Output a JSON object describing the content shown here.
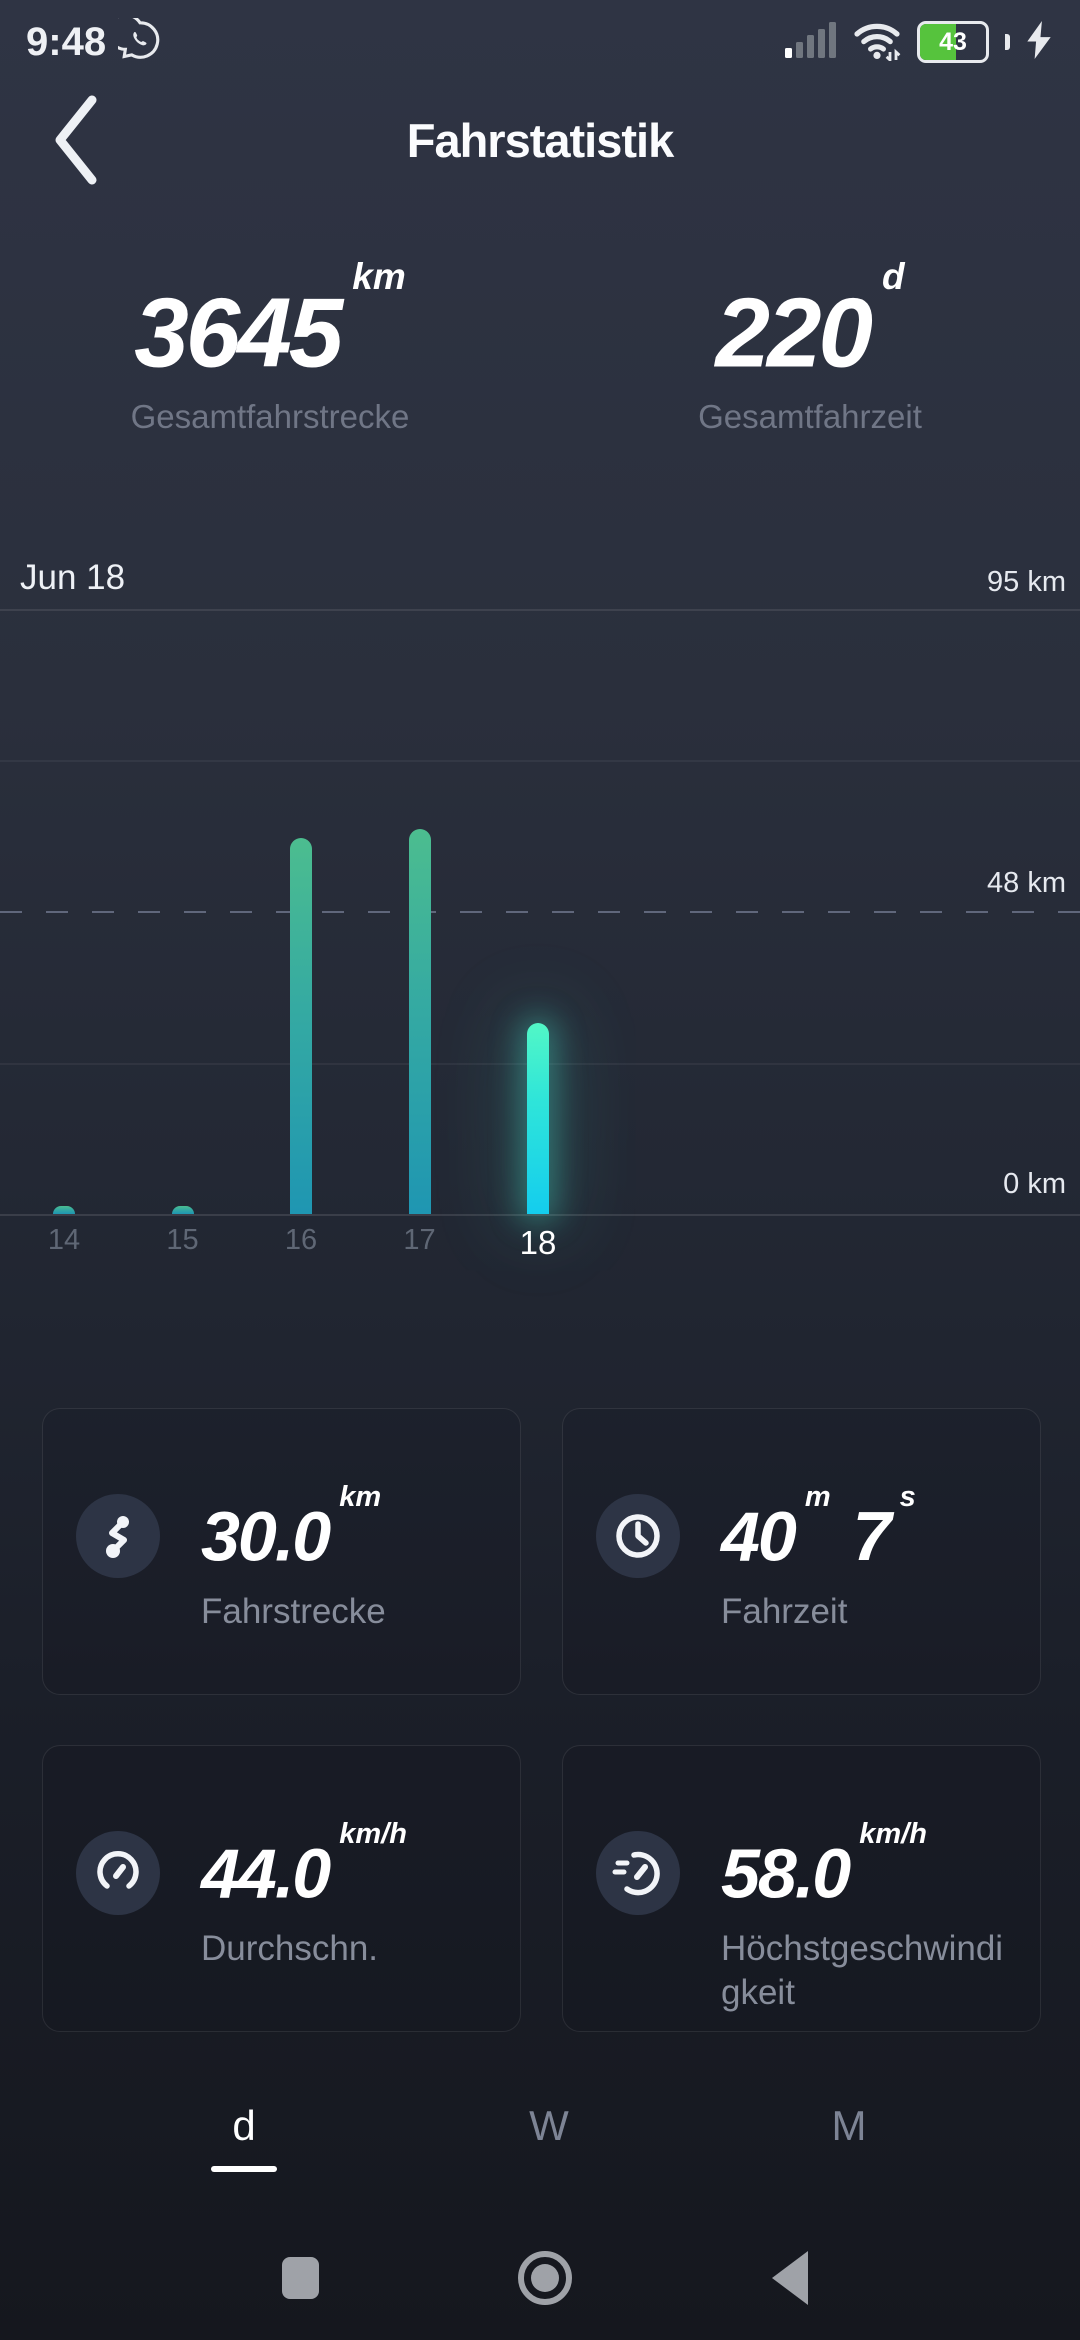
{
  "status_bar": {
    "time": "9:48",
    "battery_percent": "43"
  },
  "header": {
    "title": "Fahrstatistik"
  },
  "summary": {
    "distance": {
      "value": "3645",
      "unit": "km",
      "label": "Gesamtfahrstrecke"
    },
    "time": {
      "value": "220",
      "unit": "d",
      "label": "Gesamtfahrzeit"
    }
  },
  "chart_data": {
    "type": "bar",
    "title": "Jun 18",
    "categories": [
      "14",
      "15",
      "16",
      "17",
      "18"
    ],
    "values": [
      1.2,
      1.2,
      59.0,
      60.5,
      30.0
    ],
    "selected_category": "18",
    "unit": "km",
    "ylim": [
      0,
      95
    ],
    "ylabels": {
      "top": "95 km",
      "mid": "48 km",
      "bottom": "0 km"
    },
    "grid": "horizontal lines at quarters, mid line dashed",
    "bar_color": "#2fa8a5",
    "active_bar_color": "#2fe5d9"
  },
  "cards": [
    {
      "icon": "route-icon",
      "value": "30.0",
      "unit": "km",
      "label": "Fahrstrecke"
    },
    {
      "icon": "clock-icon",
      "value": "40",
      "unit": "m",
      "value2": "7",
      "unit2": "s",
      "label": "Fahrzeit"
    },
    {
      "icon": "gauge-icon",
      "value": "44.0",
      "unit": "km/h",
      "label": "Durchschn."
    },
    {
      "icon": "speed-icon",
      "value": "58.0",
      "unit": "km/h",
      "label": "Höchstgeschwindigkeit"
    }
  ],
  "tabs": [
    {
      "label": "d",
      "active": true
    },
    {
      "label": "W",
      "active": false
    },
    {
      "label": "M",
      "active": false
    }
  ]
}
